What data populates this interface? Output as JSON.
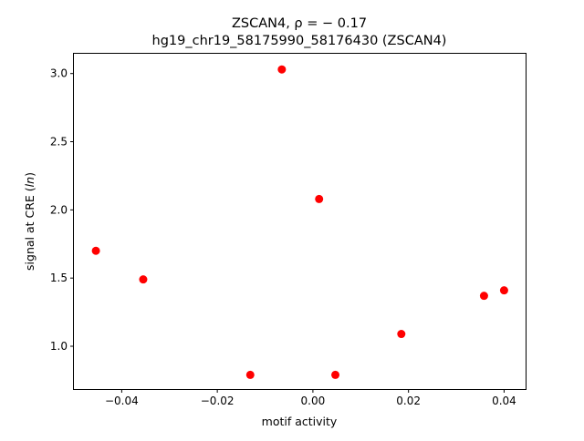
{
  "chart_data": {
    "type": "scatter",
    "title_line1": "ZSCAN4, ρ = − 0.17",
    "title_line2": "hg19_chr19_58175990_58176430 (ZSCAN4)",
    "xlabel": "motif activity",
    "ylabel_prefix": "signal at CRE (",
    "ylabel_italic": "ln",
    "ylabel_suffix": ")",
    "xlim": [
      -0.05,
      0.0445
    ],
    "ylim": [
      0.686,
      3.145
    ],
    "xticks": [
      {
        "value": -0.04,
        "label": "−0.04"
      },
      {
        "value": -0.02,
        "label": "−0.02"
      },
      {
        "value": 0.0,
        "label": "0.00"
      },
      {
        "value": 0.02,
        "label": "0.02"
      },
      {
        "value": 0.04,
        "label": "0.04"
      }
    ],
    "yticks": [
      {
        "value": 1.0,
        "label": "1.0"
      },
      {
        "value": 1.5,
        "label": "1.5"
      },
      {
        "value": 2.0,
        "label": "2.0"
      },
      {
        "value": 2.5,
        "label": "2.5"
      },
      {
        "value": 3.0,
        "label": "3.0"
      }
    ],
    "grid": false,
    "marker_color": "#ff0000",
    "points": [
      {
        "x": -0.0454,
        "y": 1.7
      },
      {
        "x": -0.0355,
        "y": 1.49
      },
      {
        "x": -0.0131,
        "y": 0.79
      },
      {
        "x": -0.0065,
        "y": 3.03
      },
      {
        "x": 0.0013,
        "y": 2.08
      },
      {
        "x": 0.0047,
        "y": 0.79
      },
      {
        "x": 0.0185,
        "y": 1.09
      },
      {
        "x": 0.0358,
        "y": 1.37
      },
      {
        "x": 0.04,
        "y": 1.41
      }
    ]
  }
}
